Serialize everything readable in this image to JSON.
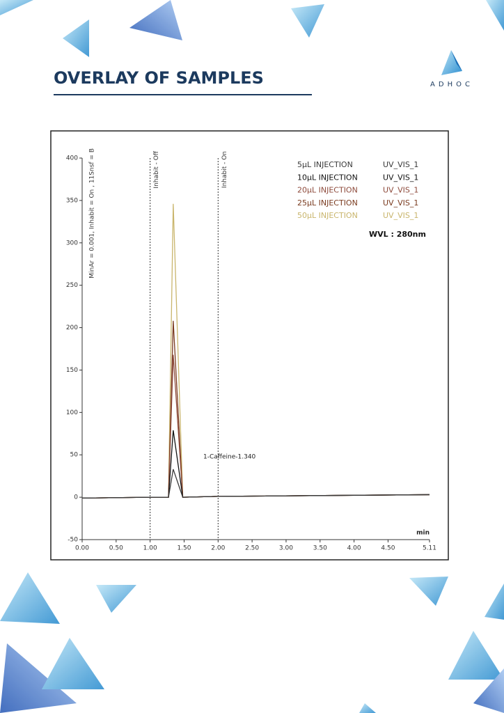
{
  "header": {
    "title": "OVERLAY OF SAMPLES",
    "logo": "ADHOC"
  },
  "chart_data": {
    "type": "line",
    "x": [
      0,
      1.0,
      1.27,
      1.34,
      1.48,
      2.0,
      5.11
    ],
    "series": [
      {
        "name": "5µL INJECTION",
        "channel": "UV_VIS_1",
        "color": "#3a3a3a",
        "values": [
          -1,
          0,
          0,
          33,
          0,
          1,
          3
        ]
      },
      {
        "name": "10µL INJECTION",
        "channel": "UV_VIS_1",
        "color": "#111111",
        "values": [
          -1,
          0,
          0,
          79,
          0,
          1,
          3
        ]
      },
      {
        "name": "20µL INJECTION",
        "channel": "UV_VIS_1",
        "color": "#8e4b3c",
        "values": [
          -1,
          0,
          0,
          168,
          0,
          1,
          3
        ]
      },
      {
        "name": "25µL INJECTION",
        "channel": "UV_VIS_1",
        "color": "#7a3b1f",
        "values": [
          -1,
          0,
          0,
          208,
          0,
          1,
          3
        ]
      },
      {
        "name": "50µL INJECTION",
        "channel": "UV_VIS_1",
        "color": "#c9b56c",
        "values": [
          -1,
          0,
          0,
          346,
          0,
          1,
          3
        ]
      }
    ],
    "xlim": [
      0,
      5.11
    ],
    "ylim": [
      -50,
      400
    ],
    "xticks": [
      {
        "value": 0,
        "label": "0.00"
      },
      {
        "value": 0.5,
        "label": "0.50"
      },
      {
        "value": 1,
        "label": "1.00"
      },
      {
        "value": 1.5,
        "label": "1.50"
      },
      {
        "value": 2,
        "label": "2.00"
      },
      {
        "value": 2.5,
        "label": "2.50"
      },
      {
        "value": 3,
        "label": "3.00"
      },
      {
        "value": 3.5,
        "label": "3.50"
      },
      {
        "value": 4,
        "label": "4.00"
      },
      {
        "value": 4.5,
        "label": "4.50"
      },
      5.11
    ],
    "yticks": [
      -50,
      0,
      50,
      100,
      150,
      200,
      250,
      300,
      350,
      400
    ],
    "x_label": "min",
    "events": [
      {
        "text": "Inhabit - Off",
        "x": 1.0
      },
      {
        "text": "Inhabit - On",
        "x": 2.0
      }
    ],
    "parameters": "MinAr = 0.001, Inhabit = On , 11Snsf = B",
    "peak_label": "1-Caffeine-1.340",
    "wavelength": "WVL : 280nm"
  }
}
